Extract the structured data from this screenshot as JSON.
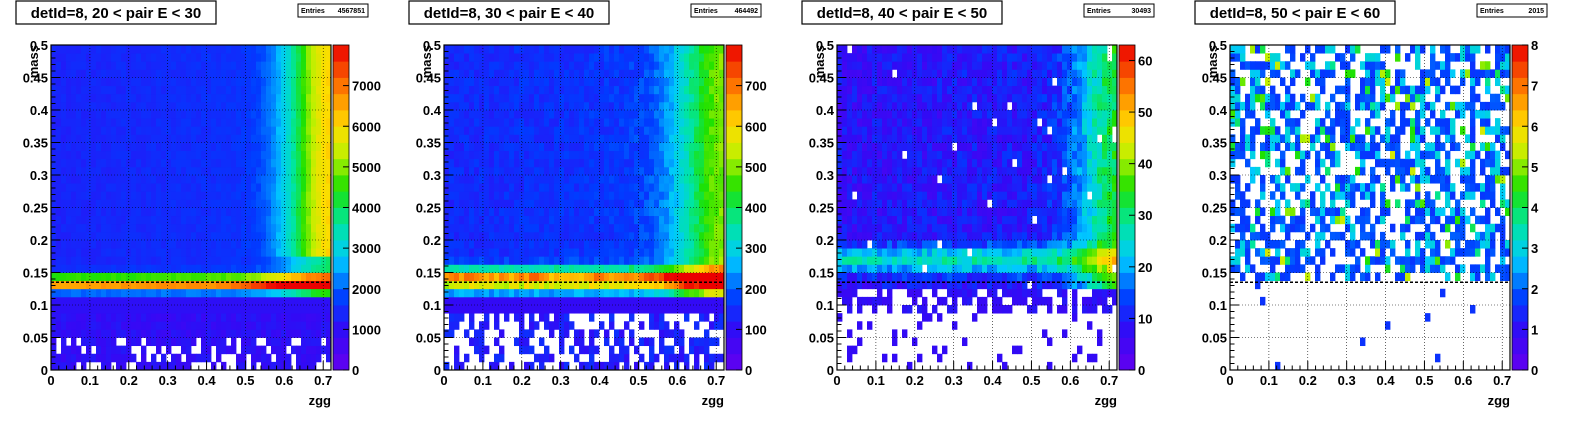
{
  "chart_data": [
    {
      "type": "heatmap",
      "title": "detId=8, 20 < pair E < 30",
      "stats": {
        "label": "Entries",
        "value": "4567851"
      },
      "xlabel": "zgg",
      "ylabel": "mass",
      "xlim": [
        0,
        0.72
      ],
      "ylim": [
        0,
        0.5
      ],
      "x_ticks": [
        "0",
        "0.1",
        "0.2",
        "0.3",
        "0.4",
        "0.5",
        "0.6",
        "0.7"
      ],
      "y_ticks": [
        "0",
        "0.05",
        "0.1",
        "0.15",
        "0.2",
        "0.25",
        "0.3",
        "0.35",
        "0.4",
        "0.45",
        "0.5"
      ],
      "z_max": 8000,
      "z_ticks": [
        "0",
        "1000",
        "2000",
        "3000",
        "4000",
        "5000",
        "6000",
        "7000"
      ],
      "peak_mass": 0.135,
      "reference_line_mass": 0.135,
      "grid": true
    },
    {
      "type": "heatmap",
      "title": "detId=8, 30 < pair E < 40",
      "stats": {
        "label": "Entries",
        "value": "464492"
      },
      "xlabel": "zgg",
      "ylabel": "mass",
      "xlim": [
        0,
        0.72
      ],
      "ylim": [
        0,
        0.5
      ],
      "x_ticks": [
        "0",
        "0.1",
        "0.2",
        "0.3",
        "0.4",
        "0.5",
        "0.6",
        "0.7"
      ],
      "y_ticks": [
        "0",
        "0.05",
        "0.1",
        "0.15",
        "0.2",
        "0.25",
        "0.3",
        "0.35",
        "0.4",
        "0.45",
        "0.5"
      ],
      "z_max": 800,
      "z_ticks": [
        "0",
        "100",
        "200",
        "300",
        "400",
        "500",
        "600",
        "700"
      ],
      "peak_mass": 0.14,
      "reference_line_mass": 0.135,
      "grid": true
    },
    {
      "type": "heatmap",
      "title": "detId=8, 40 < pair E < 50",
      "stats": {
        "label": "Entries",
        "value": "30493"
      },
      "xlabel": "zgg",
      "ylabel": "mass",
      "xlim": [
        0,
        0.72
      ],
      "ylim": [
        0,
        0.5
      ],
      "x_ticks": [
        "0",
        "0.1",
        "0.2",
        "0.3",
        "0.4",
        "0.5",
        "0.6",
        "0.7"
      ],
      "y_ticks": [
        "0",
        "0.05",
        "0.1",
        "0.15",
        "0.2",
        "0.25",
        "0.3",
        "0.35",
        "0.4",
        "0.45",
        "0.5"
      ],
      "z_max": 63,
      "z_ticks": [
        "0",
        "10",
        "20",
        "30",
        "40",
        "50",
        "60"
      ],
      "peak_mass": 0.17,
      "reference_line_mass": 0.135,
      "grid": true
    },
    {
      "type": "heatmap",
      "title": "detId=8, 50 < pair E < 60",
      "stats": {
        "label": "Entries",
        "value": "2015"
      },
      "xlabel": "zgg",
      "ylabel": "mass",
      "xlim": [
        0,
        0.72
      ],
      "ylim": [
        0,
        0.5
      ],
      "x_ticks": [
        "0",
        "0.1",
        "0.2",
        "0.3",
        "0.4",
        "0.5",
        "0.6",
        "0.7"
      ],
      "y_ticks": [
        "0",
        "0.05",
        "0.1",
        "0.15",
        "0.2",
        "0.25",
        "0.3",
        "0.35",
        "0.4",
        "0.45",
        "0.5"
      ],
      "z_max": 8,
      "z_ticks": [
        "0",
        "1",
        "2",
        "3",
        "4",
        "5",
        "6",
        "7",
        "8"
      ],
      "peak_mass": 0.22,
      "reference_line_mass": 0.135,
      "grid": true
    }
  ]
}
